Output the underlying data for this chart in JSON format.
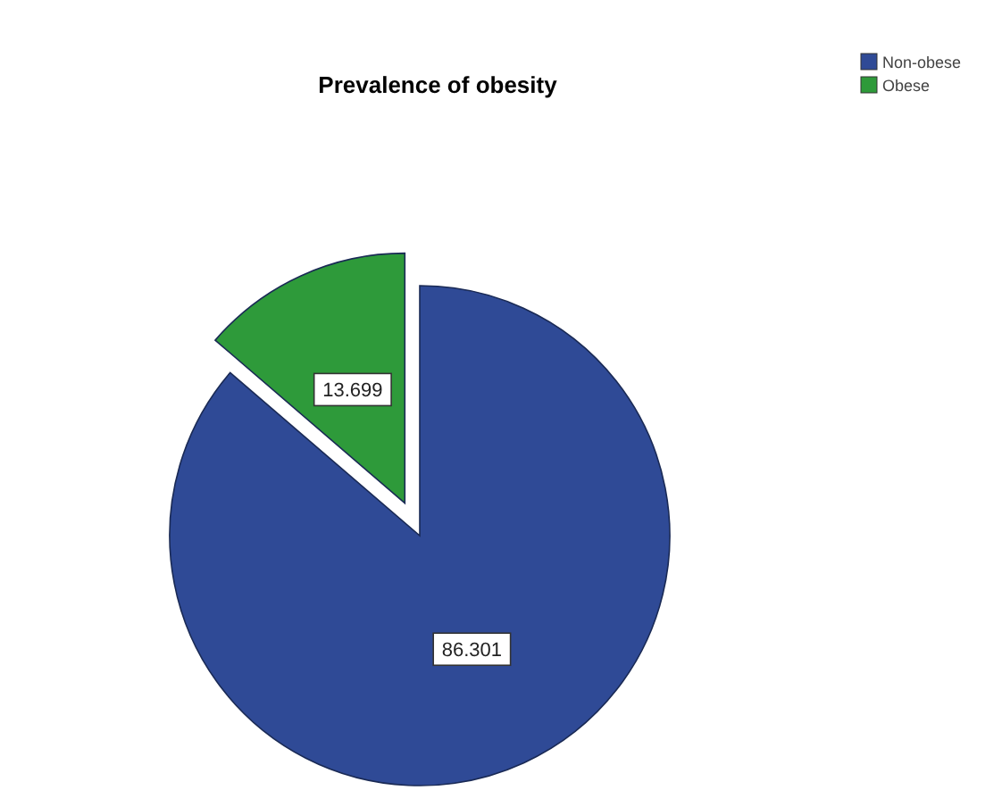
{
  "chart_data": {
    "type": "pie",
    "title": "Prevalence of obesity",
    "categories": [
      "Non-obese",
      "Obese"
    ],
    "values": [
      86.301,
      13.699
    ],
    "colors": [
      "#2f4a96",
      "#2e9a3a"
    ],
    "data_labels": true,
    "legend": "top right"
  }
}
